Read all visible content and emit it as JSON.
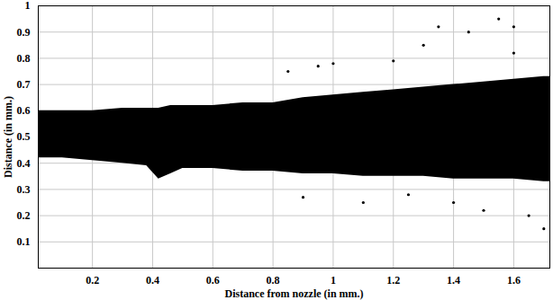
{
  "chart_data": {
    "type": "area",
    "xlabel": "Distance from nozzle (in mm.)",
    "ylabel": "Distance (in mm.)",
    "color": "#000000",
    "grid": true,
    "marker": "circle",
    "xlim": [
      0.02,
      1.72
    ],
    "ylim": [
      0,
      1
    ],
    "xticks": [
      0.2,
      0.4,
      0.6,
      0.8,
      1,
      1.2,
      1.4,
      1.6
    ],
    "yticks": [
      0.1,
      0.2,
      0.3,
      0.4,
      0.5,
      0.6,
      0.7,
      0.8,
      0.9,
      1
    ],
    "x": [
      0.02,
      0.1,
      0.2,
      0.3,
      0.38,
      0.42,
      0.46,
      0.5,
      0.6,
      0.7,
      0.8,
      0.9,
      1.0,
      1.1,
      1.2,
      1.3,
      1.4,
      1.5,
      1.6,
      1.7,
      1.72
    ],
    "y_low": [
      0.42,
      0.42,
      0.41,
      0.4,
      0.39,
      0.34,
      0.36,
      0.38,
      0.38,
      0.37,
      0.37,
      0.36,
      0.36,
      0.35,
      0.35,
      0.35,
      0.34,
      0.34,
      0.34,
      0.33,
      0.33
    ],
    "y_high": [
      0.6,
      0.6,
      0.6,
      0.61,
      0.61,
      0.61,
      0.62,
      0.62,
      0.62,
      0.63,
      0.63,
      0.65,
      0.66,
      0.67,
      0.68,
      0.69,
      0.7,
      0.71,
      0.72,
      0.73,
      0.73
    ],
    "droplets": {
      "x": [
        0.85,
        0.95,
        1.0,
        1.2,
        1.3,
        1.35,
        1.45,
        1.55,
        1.6,
        1.6,
        0.9,
        1.1,
        1.25,
        1.4,
        1.5,
        1.65,
        1.7
      ],
      "y": [
        0.75,
        0.77,
        0.78,
        0.79,
        0.85,
        0.92,
        0.9,
        0.95,
        0.82,
        0.92,
        0.27,
        0.25,
        0.28,
        0.25,
        0.22,
        0.2,
        0.15
      ]
    }
  }
}
